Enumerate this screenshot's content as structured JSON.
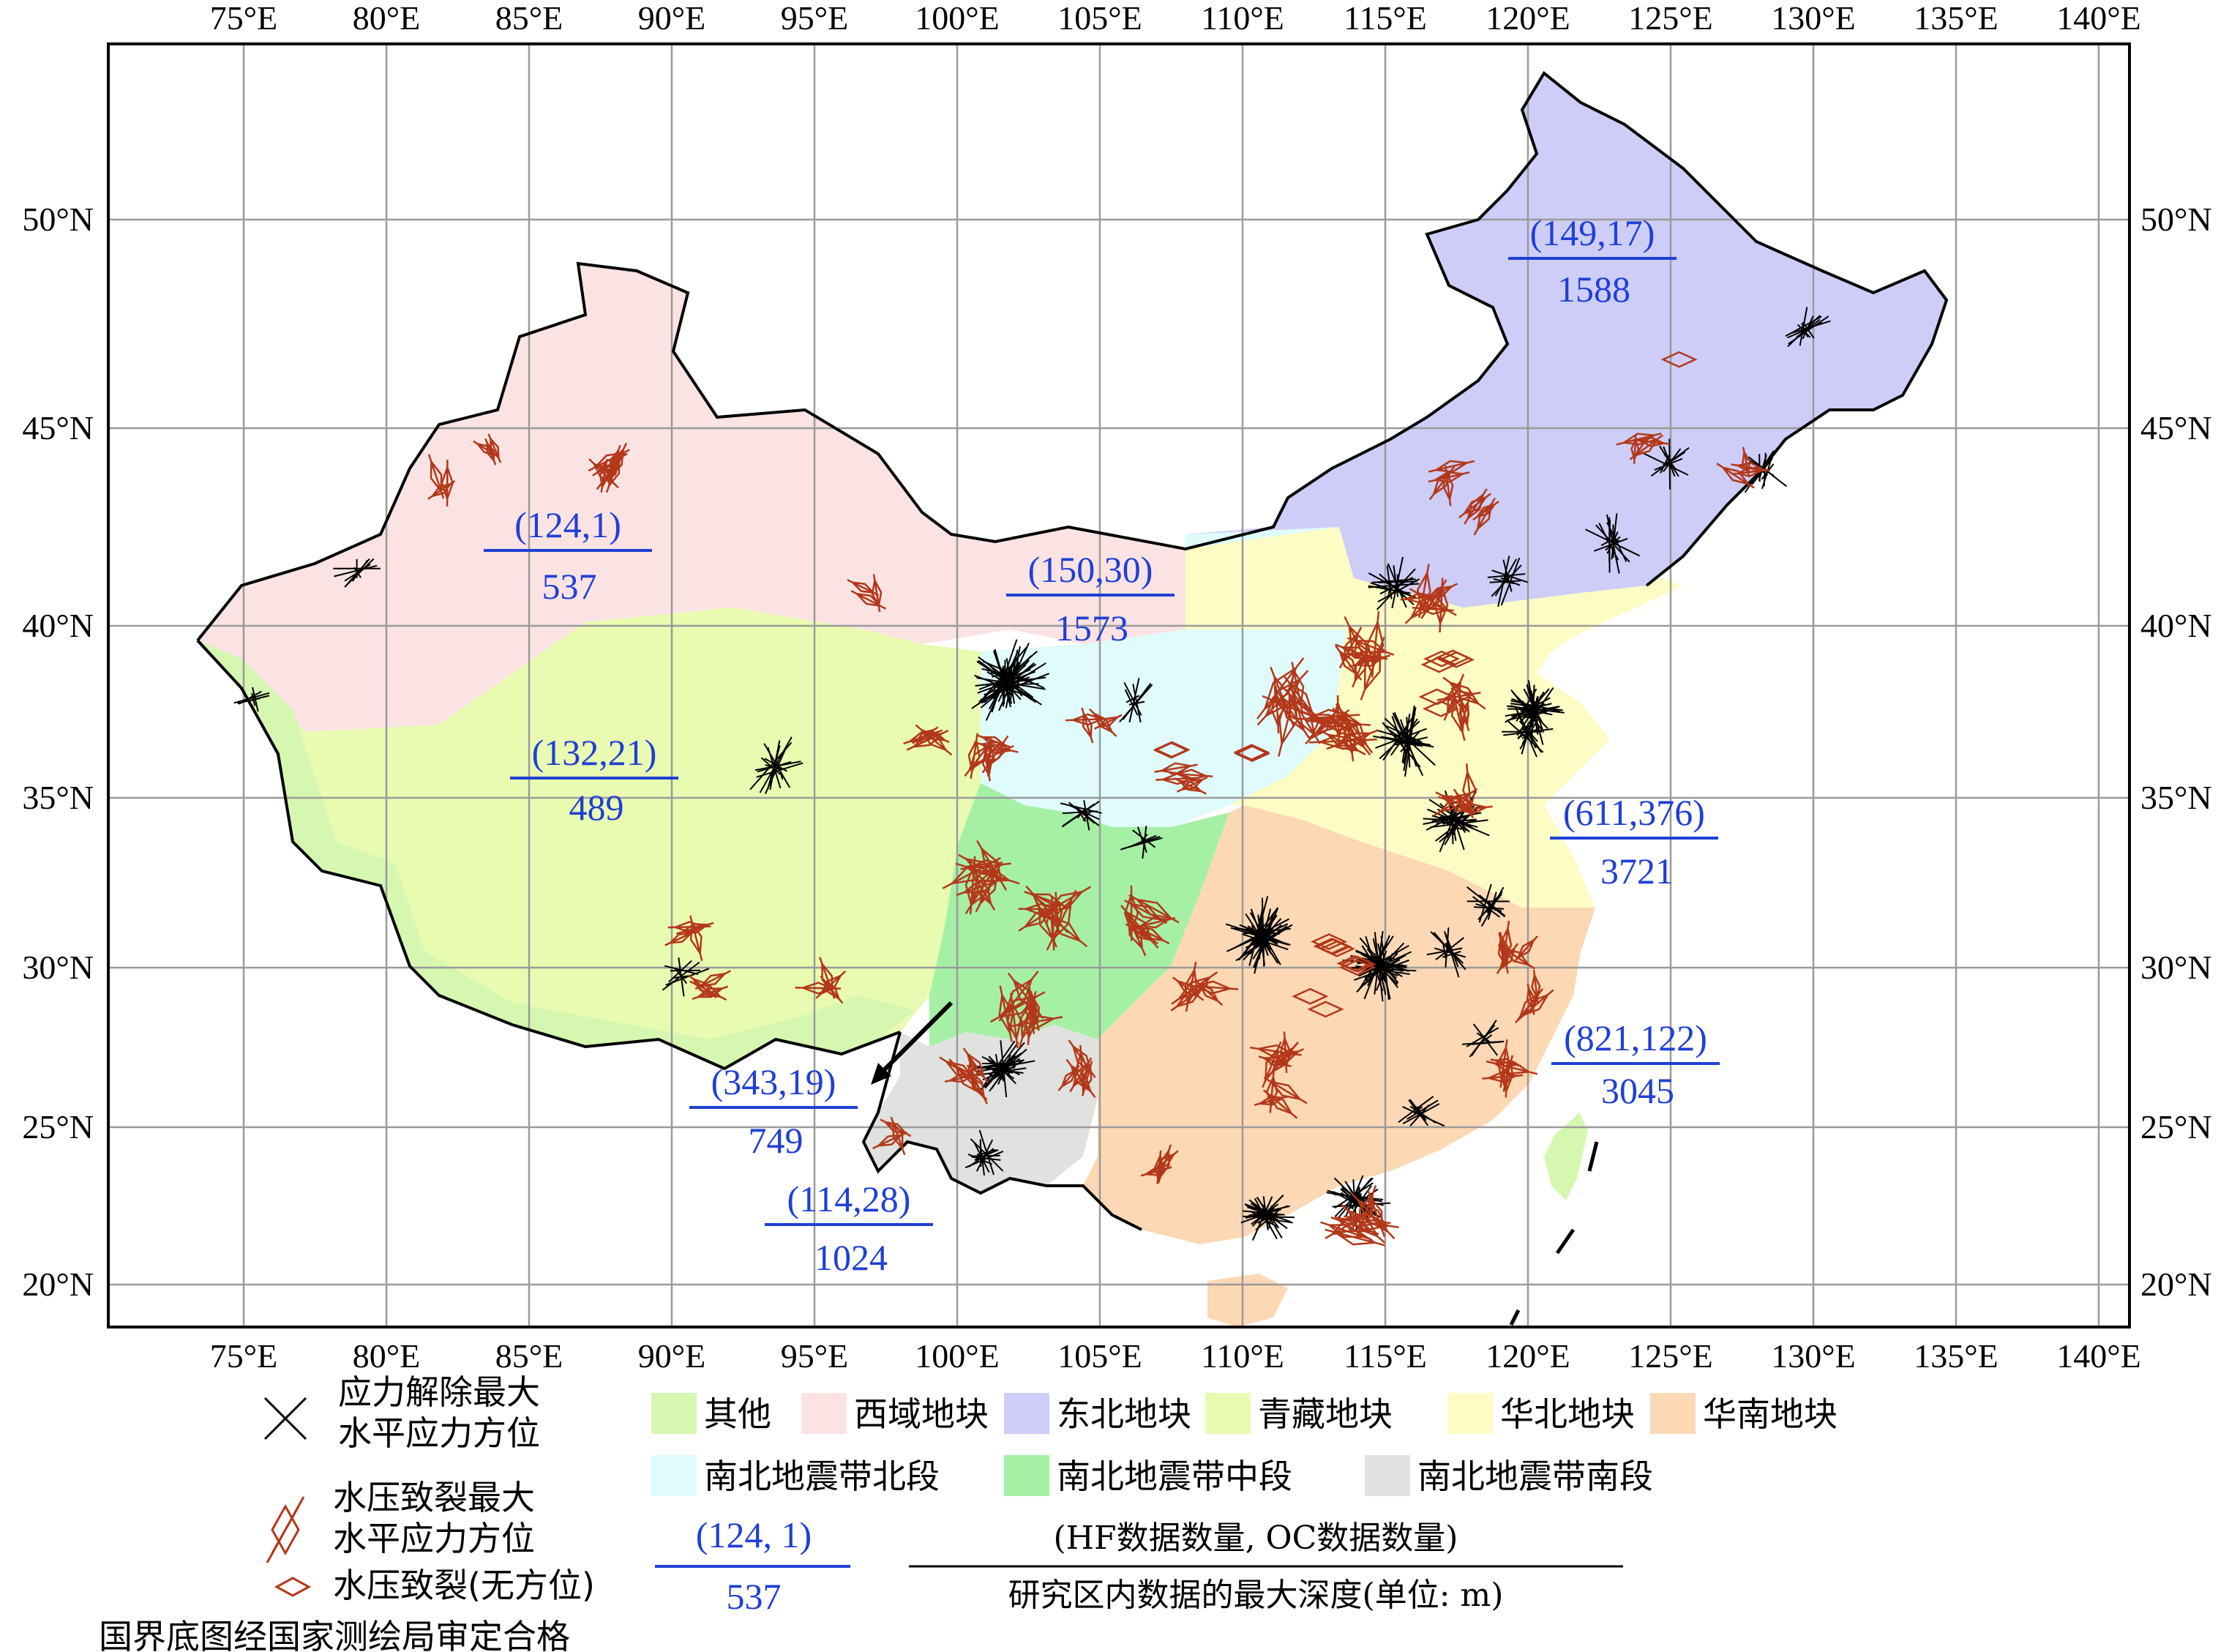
{
  "map": {
    "lon_ticks": [
      "75°E",
      "80°E",
      "85°E",
      "90°E",
      "95°E",
      "100°E",
      "105°E",
      "110°E",
      "115°E",
      "120°E",
      "125°E",
      "130°E",
      "135°E",
      "140°E"
    ],
    "lat_ticks": [
      "50°N",
      "45°N",
      "40°N",
      "35°N",
      "30°N",
      "25°N",
      "20°N"
    ],
    "regions": [
      {
        "id": "xiyu",
        "name": "西域地块",
        "color": "#fbe3e3"
      },
      {
        "id": "dongbei",
        "name": "东北地块",
        "color": "#cdcdf8"
      },
      {
        "id": "qingzang",
        "name": "青藏地块",
        "color": "#e8fbb0"
      },
      {
        "id": "huabei",
        "name": "华北地块",
        "color": "#fdfcc4"
      },
      {
        "id": "huanan",
        "name": "华南地块",
        "color": "#fcd8b4"
      },
      {
        "id": "other",
        "name": "其他",
        "color": "#d5f7b0"
      },
      {
        "id": "nbn",
        "name": "南北地震带北段",
        "color": "#dffbfb"
      },
      {
        "id": "nbm",
        "name": "南北地震带中段",
        "color": "#a6f0a6"
      },
      {
        "id": "nbs",
        "name": "南北地震带南段",
        "color": "#dfe2df"
      }
    ],
    "stats": [
      {
        "region": "xiyu",
        "top": "(124,1)",
        "bottom": "537"
      },
      {
        "region": "dongbei",
        "top": "(149,17)",
        "bottom": "1588"
      },
      {
        "region": "nbn",
        "top": "(150,30)",
        "bottom": "1573"
      },
      {
        "region": "qingzang",
        "top": "(132,21)",
        "bottom": "489"
      },
      {
        "region": "huabei",
        "top": "(611,376)",
        "bottom": "3721"
      },
      {
        "region": "huanan",
        "top": "(821,122)",
        "bottom": "3045"
      },
      {
        "region": "nbm",
        "top": "(343,19)",
        "bottom": "749"
      },
      {
        "region": "nbs",
        "top": "(114,28)",
        "bottom": "1024"
      }
    ],
    "colors": {
      "oc_symbol": "#000000",
      "hf_symbol": "#b3381a",
      "stat_text": "#1f3fd6",
      "grid": "#9a9a9a"
    }
  },
  "legend": {
    "oc_line1": "应力解除最大",
    "oc_line2": "水平应力方位",
    "hf_line1": "水压致裂最大",
    "hf_line2": "水平应力方位",
    "hf_nodir": "水压致裂(无方位)",
    "example_top": "(124, 1)",
    "example_bottom": "537",
    "explain_top": "(HF数据数量, OC数据数量)",
    "explain_bottom": "研究区内数据的最大深度(单位: m)",
    "approval": "国界底图经国家测绘局审定合格"
  }
}
